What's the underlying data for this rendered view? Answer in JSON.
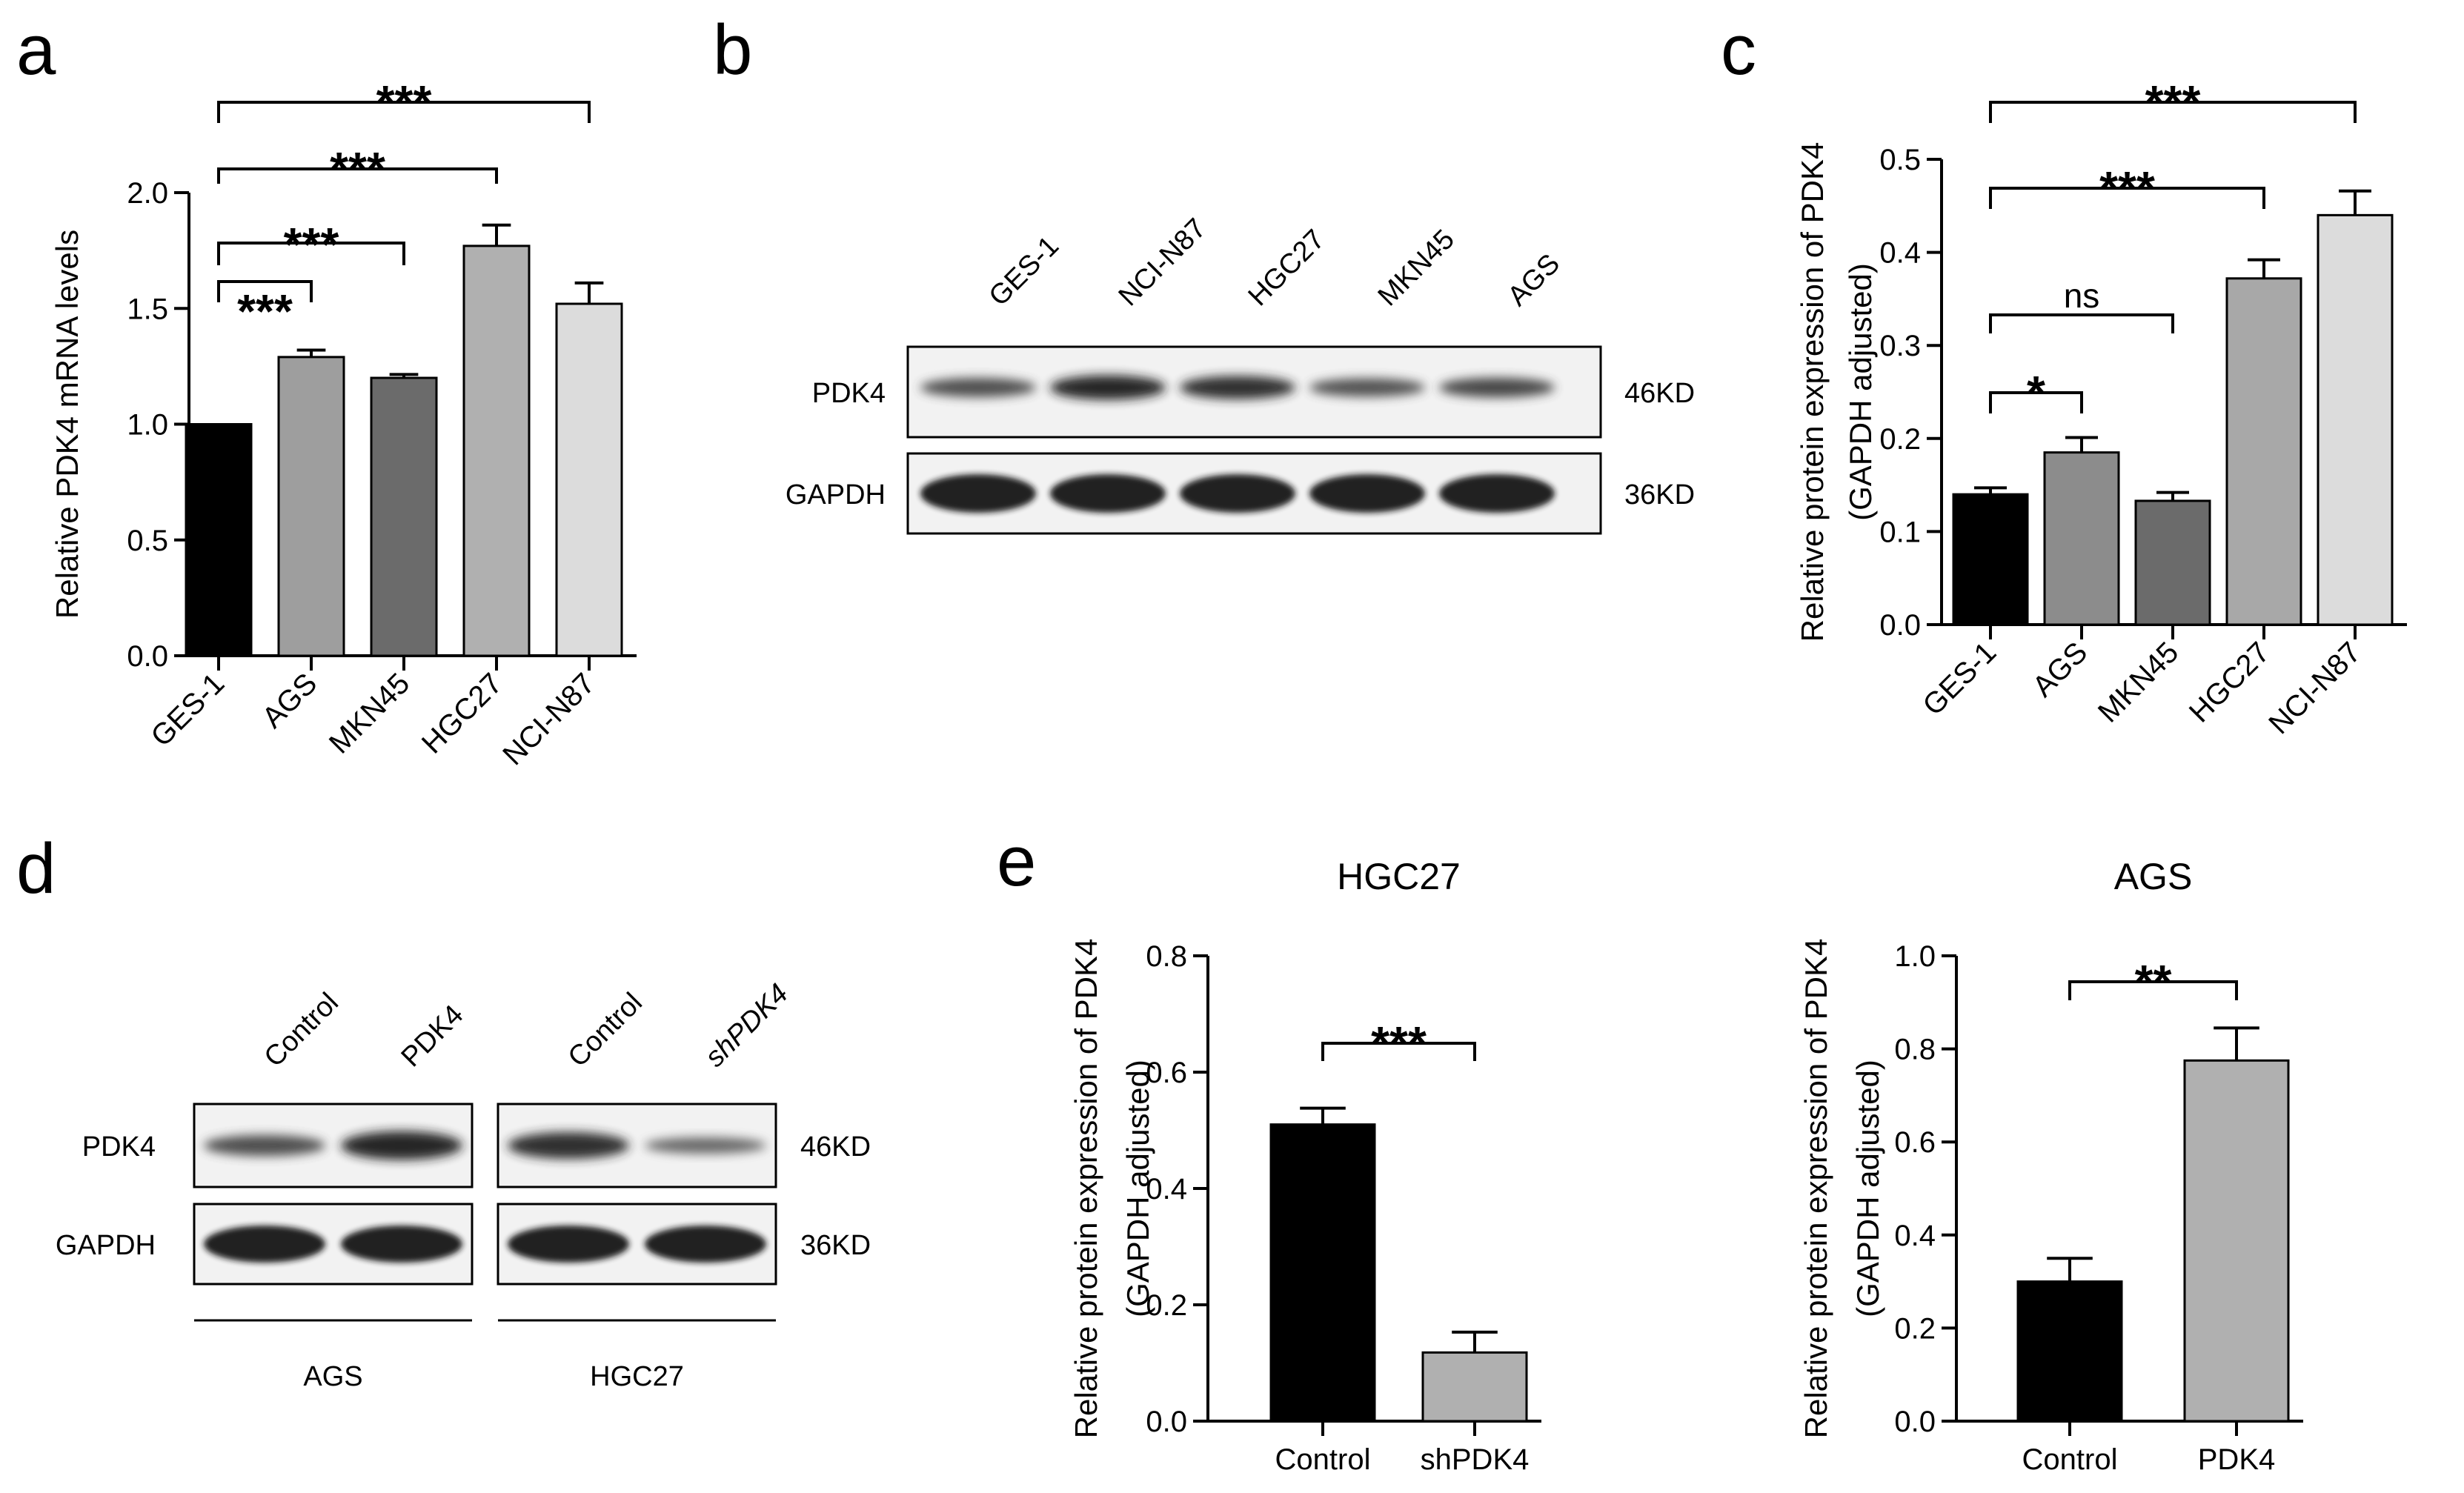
{
  "panels": {
    "a": "a",
    "b": "b",
    "c": "c",
    "d": "d",
    "e": "e"
  },
  "chart_data": [
    {
      "id": "a",
      "type": "bar",
      "categories": [
        "GES-1",
        "AGS",
        "MKN45",
        "HGC27",
        "NCI-N87"
      ],
      "values": [
        1.0,
        1.29,
        1.2,
        1.77,
        1.52
      ],
      "errors": [
        0,
        0.03,
        0.015,
        0.09,
        0.09
      ],
      "colors": [
        "#000000",
        "#9e9e9e",
        "#6b6b6b",
        "#b0b0b0",
        "#dcdcdc"
      ],
      "title": "",
      "xlabel": "",
      "ylabel": "Relative PDK4 mRNA levels",
      "ylim": [
        0,
        2.0
      ],
      "yticks": [
        "0.0",
        "0.5",
        "1.0",
        "1.5",
        "2.0"
      ],
      "yticks_values": [
        0,
        0.5,
        1.0,
        1.5,
        2.0
      ],
      "significance": [
        {
          "from": "GES-1",
          "to": "AGS",
          "label": "***"
        },
        {
          "from": "GES-1",
          "to": "MKN45",
          "label": "***"
        },
        {
          "from": "GES-1",
          "to": "HGC27",
          "label": "***"
        },
        {
          "from": "GES-1",
          "to": "NCI-N87",
          "label": "***"
        }
      ]
    },
    {
      "id": "c",
      "type": "bar",
      "categories": [
        "GES-1",
        "AGS",
        "MKN45",
        "HGC27",
        "NCI-N87"
      ],
      "values": [
        0.14,
        0.185,
        0.133,
        0.372,
        0.44
      ],
      "errors": [
        0.007,
        0.016,
        0.009,
        0.02,
        0.026
      ],
      "colors": [
        "#000000",
        "#8c8c8c",
        "#6b6b6b",
        "#a8a8a8",
        "#dcdcdc"
      ],
      "title": "",
      "xlabel": "",
      "ylabel": "Relative protein expression of PDK4",
      "ylabel2": "(GAPDH adjusted)",
      "ylim": [
        0,
        0.5
      ],
      "yticks": [
        "0.0",
        "0.1",
        "0.2",
        "0.3",
        "0.4",
        "0.5"
      ],
      "yticks_values": [
        0,
        0.1,
        0.2,
        0.3,
        0.4,
        0.5
      ],
      "significance": [
        {
          "from": "GES-1",
          "to": "AGS",
          "label": "*"
        },
        {
          "from": "GES-1",
          "to": "MKN45",
          "label": "ns"
        },
        {
          "from": "GES-1",
          "to": "HGC27",
          "label": "***"
        },
        {
          "from": "GES-1",
          "to": "NCI-N87",
          "label": "***"
        }
      ]
    },
    {
      "id": "e1",
      "type": "bar",
      "categories": [
        "Control",
        "shPDK4"
      ],
      "values": [
        0.51,
        0.118
      ],
      "errors": [
        0.028,
        0.035
      ],
      "colors": [
        "#000000",
        "#b0b0b0"
      ],
      "title": "HGC27",
      "xlabel": "",
      "ylabel": "Relative protein expression of PDK4",
      "ylabel2": "(GAPDH adjusted)",
      "ylim": [
        0,
        0.8
      ],
      "yticks": [
        "0.0",
        "0.2",
        "0.4",
        "0.6",
        "0.8"
      ],
      "yticks_values": [
        0,
        0.2,
        0.4,
        0.6,
        0.8
      ],
      "significance": [
        {
          "from": "Control",
          "to": "shPDK4",
          "label": "***"
        }
      ]
    },
    {
      "id": "e2",
      "type": "bar",
      "categories": [
        "Control",
        "PDK4"
      ],
      "values": [
        0.3,
        0.775
      ],
      "errors": [
        0.05,
        0.07
      ],
      "colors": [
        "#000000",
        "#b0b0b0"
      ],
      "title": "AGS",
      "xlabel": "",
      "ylabel": "Relative protein expression of PDK4",
      "ylabel2": "(GAPDH adjusted)",
      "ylim": [
        0,
        1.0
      ],
      "yticks": [
        "0.0",
        "0.2",
        "0.4",
        "0.6",
        "0.8",
        "1.0"
      ],
      "yticks_values": [
        0,
        0.2,
        0.4,
        0.6,
        0.8,
        1.0
      ],
      "significance": [
        {
          "from": "Control",
          "to": "PDK4",
          "label": "**"
        }
      ]
    }
  ],
  "blot_b": {
    "lanes": [
      "GES-1",
      "NCI-N87",
      "HGC27",
      "MKN45",
      "AGS"
    ],
    "rows": [
      {
        "label": "PDK4",
        "size": "46KD",
        "intensity": [
          0.55,
          0.95,
          0.85,
          0.5,
          0.6
        ]
      },
      {
        "label": "GAPDH",
        "size": "36KD",
        "intensity": [
          1,
          1,
          1,
          1,
          1
        ]
      }
    ]
  },
  "blot_d": {
    "groups": [
      {
        "name": "AGS",
        "lanes": [
          "Control",
          "PDK4"
        ]
      },
      {
        "name": "HGC27",
        "lanes": [
          "Control",
          "shPDK4"
        ]
      }
    ],
    "rows": [
      {
        "label": "PDK4",
        "size": "46KD",
        "intensity": [
          [
            0.55,
            0.95
          ],
          [
            0.85,
            0.3
          ]
        ]
      },
      {
        "label": "GAPDH",
        "size": "36KD",
        "intensity": [
          [
            1,
            1
          ],
          [
            1,
            1
          ]
        ]
      }
    ]
  }
}
